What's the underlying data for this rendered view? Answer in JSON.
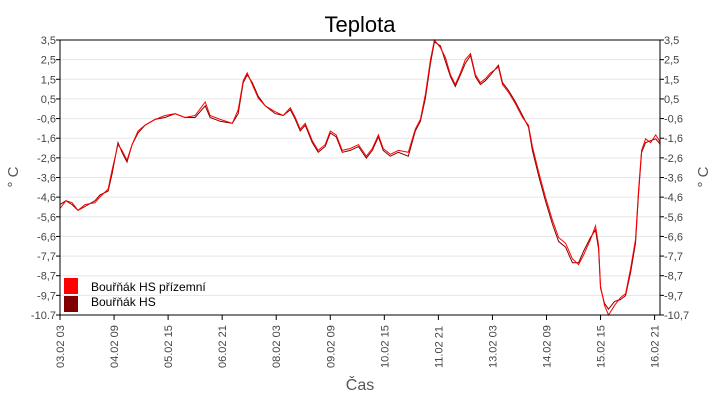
{
  "chart_data": {
    "type": "line",
    "title": "Teplota",
    "xlabel": "Čas",
    "ylabel": "° C",
    "x_unit": "hours since 03.02 03:00",
    "xlim": [
      0,
      333
    ],
    "ylim": [
      -10.7,
      3.5
    ],
    "grid": true,
    "legend_position": "bottom-left",
    "x_ticks": [
      {
        "hour": 0,
        "label": "03.02 03"
      },
      {
        "hour": 30,
        "label": "04.02 09"
      },
      {
        "hour": 60,
        "label": "05.02 15"
      },
      {
        "hour": 90,
        "label": "06.02 21"
      },
      {
        "hour": 120,
        "label": "08.02 03"
      },
      {
        "hour": 150,
        "label": "09.02 09"
      },
      {
        "hour": 180,
        "label": "10.02 15"
      },
      {
        "hour": 210,
        "label": "11.02 21"
      },
      {
        "hour": 240,
        "label": "13.02 03"
      },
      {
        "hour": 270,
        "label": "14.02 09"
      },
      {
        "hour": 300,
        "label": "15.02 15"
      },
      {
        "hour": 330,
        "label": "16.02 21"
      }
    ],
    "y_ticks_left": [
      "3,5",
      "2,5",
      "1,5",
      "0,5",
      "-0,6",
      "-1,6",
      "-2,6",
      "-3,6",
      "-4,6",
      "-5,6",
      "-6,6",
      "-7,7",
      "-8,7",
      "-9,7",
      "-10.7"
    ],
    "y_ticks_right": [
      "3,5",
      "2,5",
      "1,5",
      "0,5",
      "-0,6",
      "-1,6",
      "-2,6",
      "-3,6",
      "-4,6",
      "-5,6",
      "-6,6",
      "-7,7",
      "-8,7",
      "-9,7",
      "-10,7"
    ],
    "x": [
      0,
      3.3,
      6.7,
      10,
      13.9,
      19.4,
      22.2,
      26.7,
      28.9,
      32.2,
      34.4,
      37.2,
      40,
      43.3,
      47.2,
      52.8,
      58.3,
      63.9,
      69.4,
      75,
      80.6,
      83.3,
      88.9,
      95.6,
      98.9,
      101.7,
      103.9,
      106.7,
      110,
      113.9,
      119.4,
      123.9,
      127.8,
      130.6,
      133.3,
      136.1,
      140,
      143.3,
      147.2,
      150,
      153.3,
      156.7,
      161.1,
      165.6,
      170,
      173.3,
      176.7,
      179.4,
      183.3,
      187.8,
      193.3,
      197.2,
      200,
      202.8,
      205.6,
      207.8,
      211.1,
      213.9,
      216.7,
      219.4,
      222.2,
      225,
      227.8,
      230.6,
      233.3,
      236.1,
      238.9,
      243.3,
      245.6,
      248.9,
      252.8,
      256.7,
      260,
      262.2,
      265.6,
      269.4,
      273.3,
      276.7,
      280.6,
      284.4,
      287.8,
      290.6,
      294.4,
      297.2,
      298.9,
      300,
      302.2,
      304.4,
      307.8,
      311.1,
      313.9,
      316.7,
      319.4,
      321.1,
      322.8,
      325,
      327.8,
      330.6,
      333.3
    ],
    "series": [
      {
        "name": "Bouřňák HS přízemní",
        "color": "#ff0000",
        "values": [
          -5.2,
          -4.8,
          -4.9,
          -5.3,
          -5.0,
          -4.9,
          -4.6,
          -4.2,
          -3.2,
          -1.9,
          -2.2,
          -2.7,
          -1.9,
          -1.2,
          -0.9,
          -0.6,
          -0.4,
          -0.3,
          -0.5,
          -0.4,
          0.3,
          -0.4,
          -0.6,
          -0.8,
          -0.1,
          1.4,
          1.8,
          1.2,
          0.5,
          0.1,
          -0.2,
          -0.4,
          0.0,
          -0.5,
          -1.1,
          -0.8,
          -1.7,
          -2.2,
          -1.9,
          -1.2,
          -1.4,
          -2.2,
          -2.1,
          -1.9,
          -2.5,
          -2.1,
          -1.4,
          -2.1,
          -2.4,
          -2.2,
          -2.3,
          -1.1,
          -0.6,
          0.7,
          2.5,
          3.5,
          3.1,
          2.6,
          1.7,
          1.2,
          1.8,
          2.5,
          2.8,
          1.7,
          1.3,
          1.5,
          1.8,
          2.1,
          1.2,
          0.8,
          0.2,
          -0.5,
          -0.9,
          -2.0,
          -3.3,
          -4.6,
          -5.8,
          -6.7,
          -7.0,
          -7.8,
          -8.1,
          -7.6,
          -6.8,
          -6.1,
          -7.1,
          -9.2,
          -10.2,
          -10.7,
          -10.2,
          -9.8,
          -9.6,
          -8.3,
          -6.8,
          -4.2,
          -2.2,
          -1.6,
          -1.8,
          -1.4,
          -1.8
        ]
      },
      {
        "name": "Bouřňák HS",
        "color": "#800000",
        "values": [
          -5.0,
          -4.8,
          -5.0,
          -5.3,
          -5.1,
          -4.8,
          -4.5,
          -4.3,
          -3.4,
          -1.8,
          -2.3,
          -2.8,
          -1.9,
          -1.3,
          -0.9,
          -0.6,
          -0.5,
          -0.3,
          -0.5,
          -0.5,
          0.1,
          -0.5,
          -0.7,
          -0.8,
          -0.3,
          1.3,
          1.7,
          1.3,
          0.6,
          0.1,
          -0.3,
          -0.4,
          -0.1,
          -0.6,
          -1.2,
          -0.9,
          -1.8,
          -2.3,
          -2.0,
          -1.3,
          -1.5,
          -2.3,
          -2.2,
          -2.0,
          -2.6,
          -2.2,
          -1.5,
          -2.2,
          -2.5,
          -2.3,
          -2.5,
          -1.2,
          -0.7,
          0.5,
          2.3,
          3.4,
          3.2,
          2.4,
          1.6,
          1.1,
          1.7,
          2.3,
          2.7,
          1.6,
          1.2,
          1.4,
          1.7,
          2.2,
          1.3,
          0.9,
          0.3,
          -0.4,
          -1.0,
          -2.2,
          -3.5,
          -4.8,
          -6.0,
          -6.9,
          -7.2,
          -8.0,
          -8.0,
          -7.4,
          -6.7,
          -6.3,
          -7.3,
          -9.3,
          -10.1,
          -10.4,
          -10.0,
          -9.9,
          -9.7,
          -8.5,
          -7.0,
          -4.4,
          -2.3,
          -1.8,
          -1.7,
          -1.6,
          -1.9
        ]
      }
    ]
  }
}
